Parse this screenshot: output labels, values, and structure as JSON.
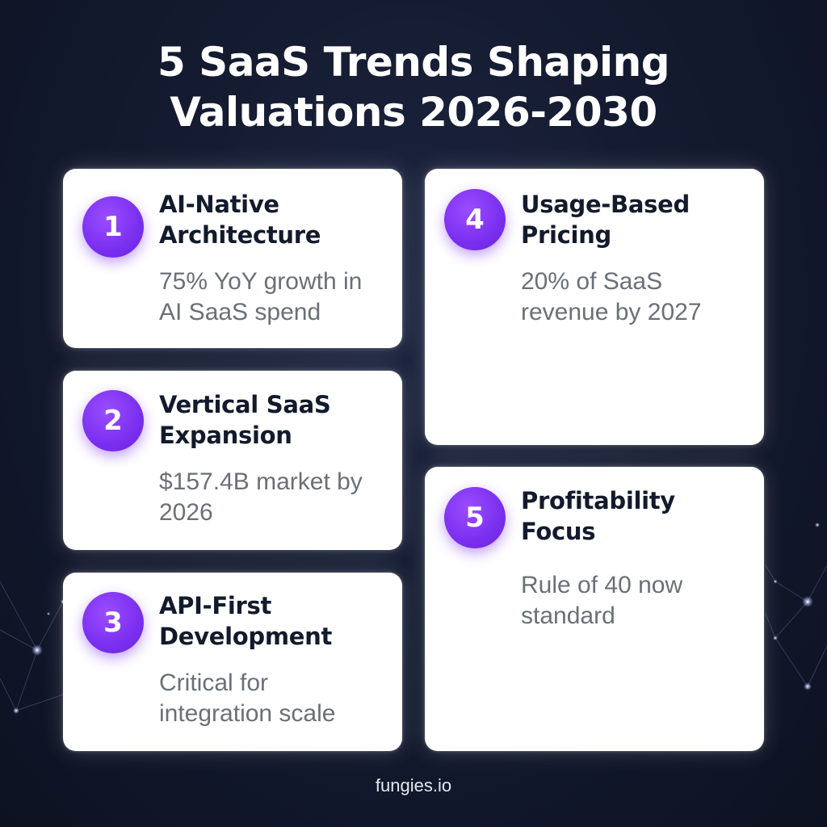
{
  "title": {
    "line1": "5 SaaS Trends Shaping",
    "line2": "Valuations 2026-2030"
  },
  "trends": [
    {
      "number": "1",
      "title_line1": "AI-Native",
      "title_line2": "Architecture",
      "desc_line1": "75% YoY growth in",
      "desc_line2": "AI SaaS spend"
    },
    {
      "number": "2",
      "title_line1": "Vertical SaaS",
      "title_line2": "Expansion",
      "desc_line1": "$157.4B market by",
      "desc_line2": "2026"
    },
    {
      "number": "3",
      "title_line1": "API-First",
      "title_line2": "Development",
      "desc_line1": "Critical for",
      "desc_line2": "integration scale"
    },
    {
      "number": "4",
      "title_line1": "Usage-Based",
      "title_line2": "Pricing",
      "desc_line1": "20% of SaaS",
      "desc_line2": "revenue by 2027"
    },
    {
      "number": "5",
      "title_line1": "Profitability",
      "title_line2": "Focus",
      "desc_line1": "Rule of 40 now",
      "desc_line2": "standard"
    }
  ],
  "footer": "fungies.io",
  "colors": {
    "background": "#141b30",
    "card": "#ffffff",
    "badge": "#7a2ff0",
    "title_text": "#121a2c",
    "desc_text": "#6b6f78"
  },
  "icons": {
    "background": "network-constellation-icon"
  }
}
